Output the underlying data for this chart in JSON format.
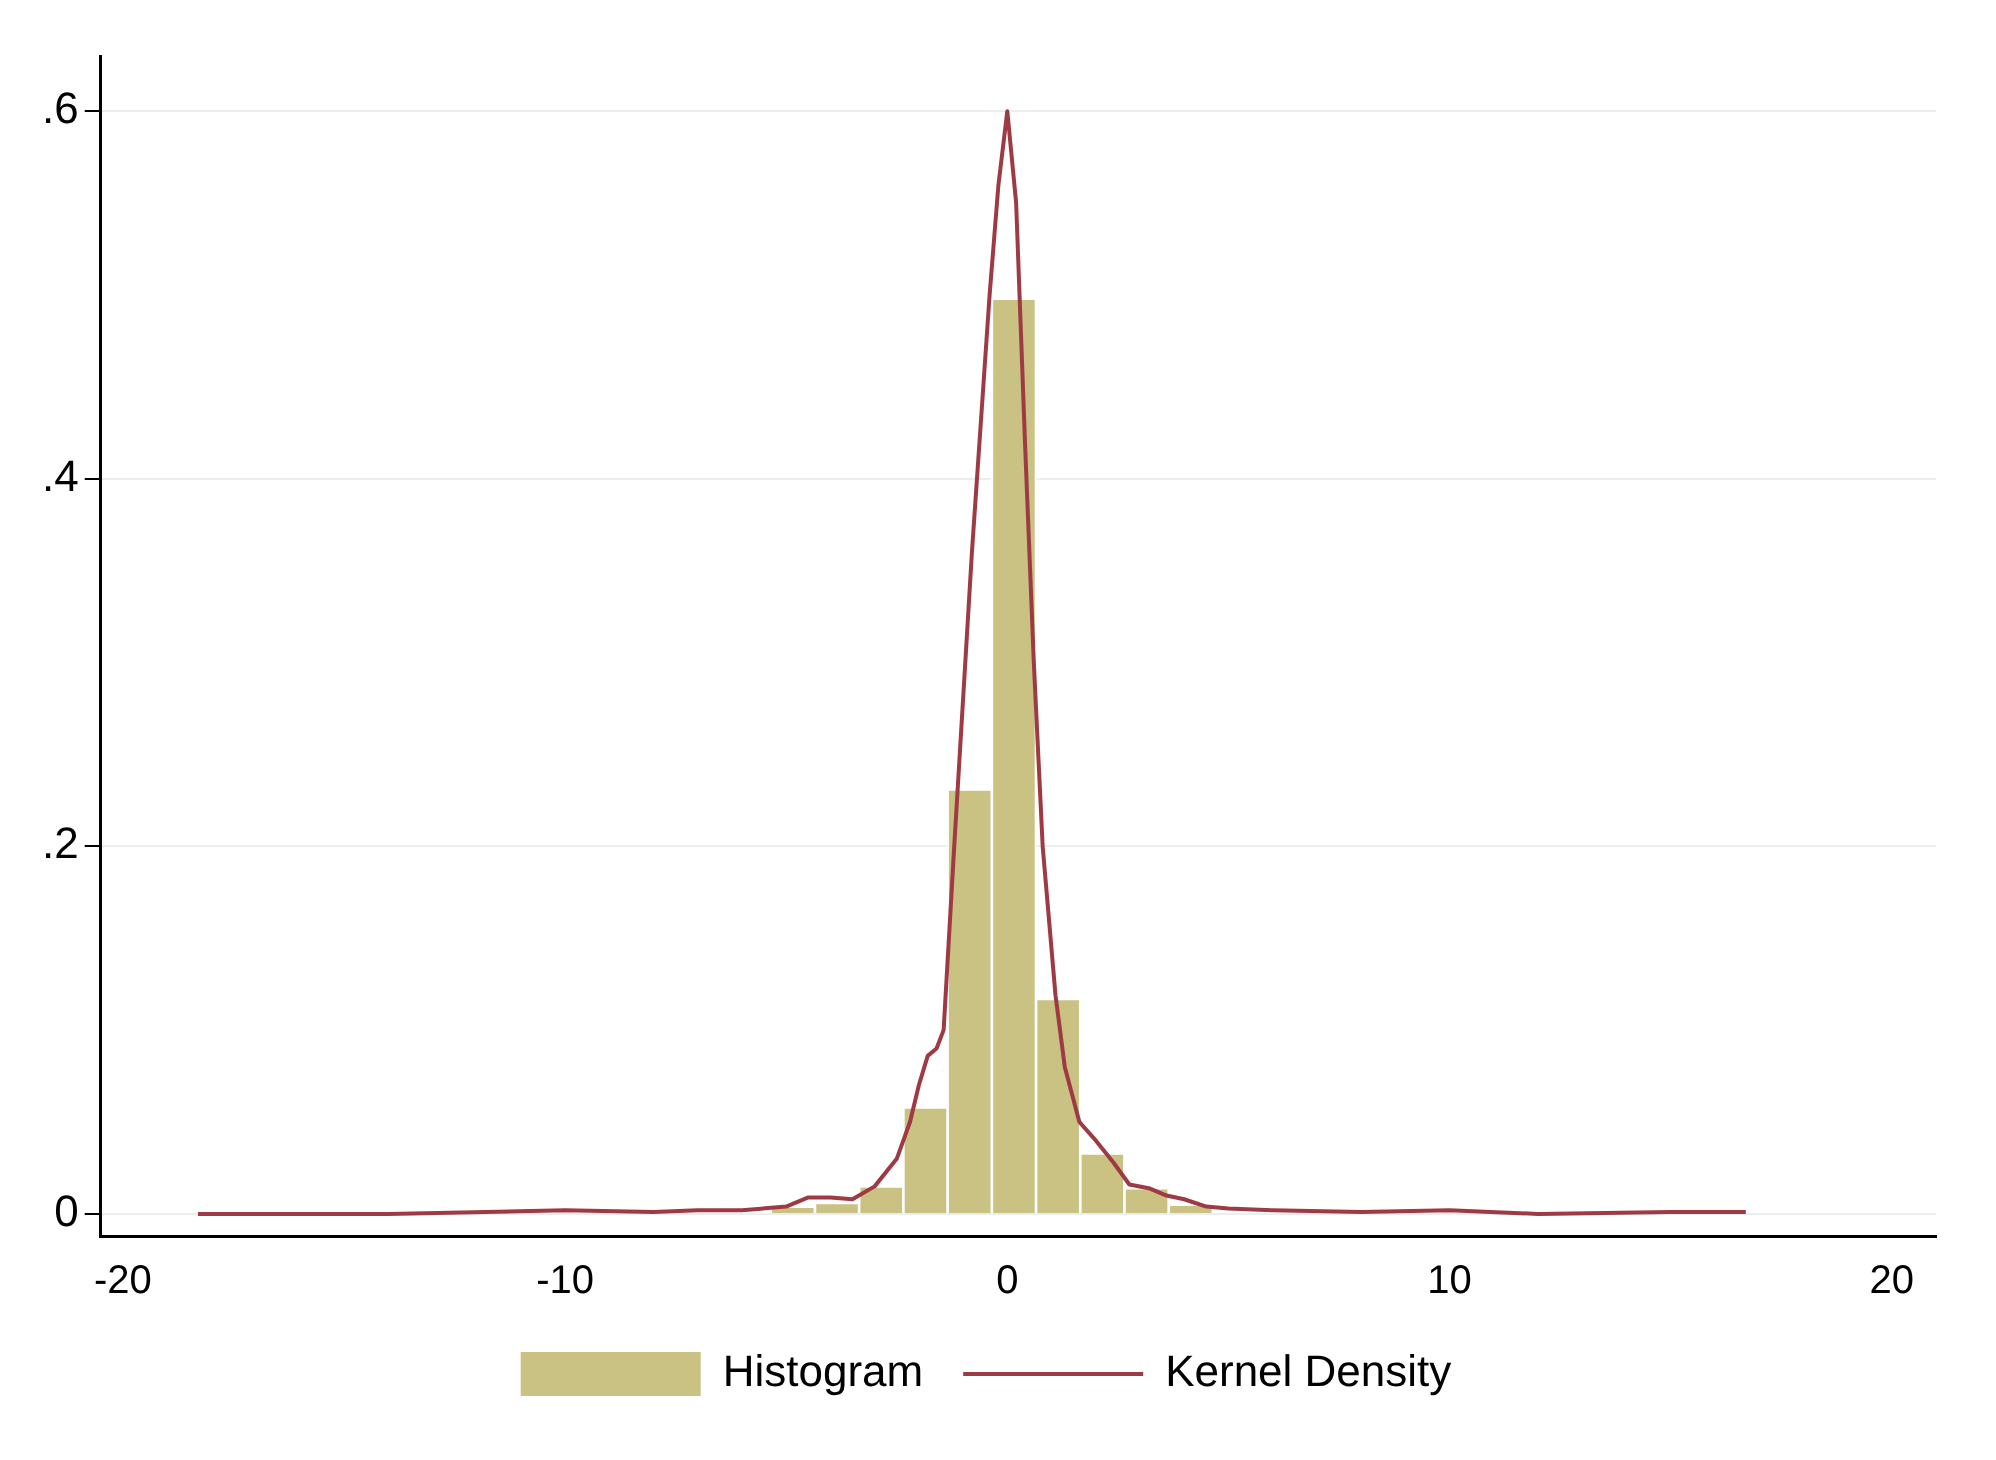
{
  "chart_data": {
    "type": "histogram",
    "series": [
      {
        "name": "Histogram",
        "color": "#c9c283",
        "bins": [
          -5.35,
          -4.35,
          -3.35,
          -2.35,
          -1.35,
          -0.35,
          0.65,
          1.65,
          2.65,
          3.65,
          4.65
        ],
        "values": [
          0.004,
          0.006,
          0.015,
          0.058,
          0.231,
          0.498,
          0.117,
          0.033,
          0.014,
          0.005
        ]
      },
      {
        "type": "line",
        "name": "Kernel Density",
        "color": "#9e3a44",
        "x": [
          -18.3,
          -14,
          -10,
          -8,
          -7,
          -6,
          -5,
          -4.5,
          -4,
          -3.5,
          -3,
          -2.5,
          -2.2,
          -2,
          -1.8,
          -1.6,
          -1.44,
          -1.2,
          -1,
          -0.8,
          -0.6,
          -0.4,
          -0.2,
          0,
          0.2,
          0.4,
          0.6,
          0.8,
          1.09,
          1.3,
          1.63,
          2,
          2.4,
          2.76,
          3.2,
          3.6,
          4,
          4.5,
          5,
          6,
          8,
          10,
          12,
          15,
          16.7
        ],
        "values": [
          0,
          0,
          0.002,
          0.001,
          0.002,
          0.002,
          0.004,
          0.009,
          0.009,
          0.008,
          0.015,
          0.03,
          0.05,
          0.07,
          0.086,
          0.09,
          0.1,
          0.2,
          0.28,
          0.36,
          0.43,
          0.5,
          0.56,
          0.6,
          0.55,
          0.42,
          0.3,
          0.2,
          0.119,
          0.08,
          0.05,
          0.04,
          0.028,
          0.016,
          0.014,
          0.01,
          0.008,
          0.004,
          0.003,
          0.002,
          0.001,
          0.002,
          0,
          0.001,
          0.001
        ]
      }
    ],
    "xlim": [
      -20.5,
      21
    ],
    "xticks": [
      -20,
      -10,
      0,
      10,
      20
    ],
    "ylim": [
      -0.012,
      0.63
    ],
    "yticks": [
      {
        "value": 0,
        "label": "0"
      },
      {
        "value": 0.2,
        "label": ".2"
      },
      {
        "value": 0.4,
        "label": ".4"
      },
      {
        "value": 0.6,
        "label": ".6"
      }
    ],
    "grid": "y",
    "legend": "bottom",
    "marker": "none",
    "line_style": "solid"
  }
}
